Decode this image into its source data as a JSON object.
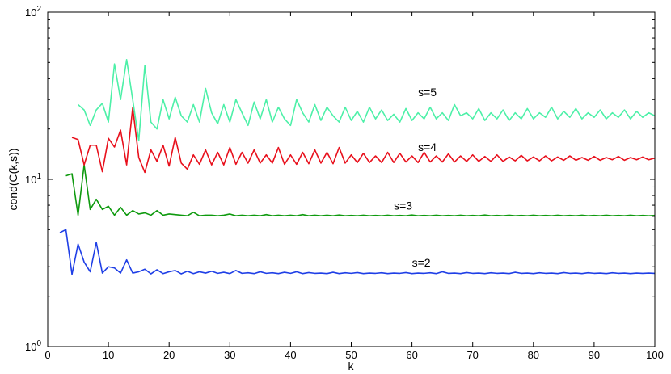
{
  "chart_data": {
    "type": "line",
    "title": "",
    "xlabel": "k",
    "ylabel": "cond(C(k,s))",
    "xlim": [
      0,
      100
    ],
    "ylim": [
      1,
      100
    ],
    "yscale": "log",
    "grid": false,
    "x_ticks": [
      0,
      10,
      20,
      30,
      40,
      50,
      60,
      70,
      80,
      90,
      100
    ],
    "y_ticks": [
      {
        "value": 1,
        "base": "10",
        "exp": "0"
      },
      {
        "value": 10,
        "base": "10",
        "exp": "1"
      },
      {
        "value": 100,
        "base": "10",
        "exp": "2"
      }
    ],
    "series": [
      {
        "name": "s=2",
        "color": "#1f3fe6",
        "label_at": [
          60,
          3.0
        ],
        "x": [
          2,
          3,
          4,
          5,
          6,
          7,
          8,
          9,
          10,
          11,
          12,
          13,
          14,
          15,
          16,
          17,
          18,
          19,
          20,
          21,
          22,
          23,
          24,
          25,
          26,
          27,
          28,
          29,
          30,
          31,
          32,
          33,
          34,
          35,
          36,
          37,
          38,
          39,
          40,
          41,
          42,
          43,
          44,
          45,
          46,
          47,
          48,
          49,
          50,
          51,
          52,
          53,
          54,
          55,
          56,
          57,
          58,
          59,
          60,
          61,
          62,
          63,
          64,
          65,
          66,
          67,
          68,
          69,
          70,
          71,
          72,
          73,
          74,
          75,
          76,
          77,
          78,
          79,
          80,
          81,
          82,
          83,
          84,
          85,
          86,
          87,
          88,
          89,
          90,
          91,
          92,
          93,
          94,
          95,
          96,
          97,
          98,
          99,
          100
        ],
        "values": [
          4.8,
          5.0,
          2.7,
          4.1,
          3.2,
          2.8,
          4.2,
          2.75,
          3.0,
          2.95,
          2.75,
          3.3,
          2.75,
          2.8,
          2.9,
          2.72,
          2.88,
          2.73,
          2.8,
          2.85,
          2.72,
          2.82,
          2.73,
          2.8,
          2.75,
          2.82,
          2.74,
          2.78,
          2.73,
          2.85,
          2.74,
          2.76,
          2.73,
          2.8,
          2.74,
          2.76,
          2.73,
          2.78,
          2.74,
          2.8,
          2.73,
          2.77,
          2.74,
          2.75,
          2.73,
          2.78,
          2.73,
          2.76,
          2.74,
          2.77,
          2.73,
          2.75,
          2.74,
          2.76,
          2.73,
          2.75,
          2.74,
          2.77,
          2.73,
          2.75,
          2.74,
          2.76,
          2.73,
          2.8,
          2.74,
          2.75,
          2.73,
          2.77,
          2.74,
          2.75,
          2.73,
          2.76,
          2.74,
          2.75,
          2.73,
          2.78,
          2.74,
          2.75,
          2.73,
          2.76,
          2.74,
          2.75,
          2.73,
          2.77,
          2.74,
          2.75,
          2.73,
          2.76,
          2.74,
          2.75,
          2.73,
          2.76,
          2.74,
          2.75,
          2.73,
          2.75,
          2.74,
          2.75,
          2.74
        ]
      },
      {
        "name": "s=3",
        "color": "#0f9a0f",
        "label_at": [
          57,
          6.6
        ],
        "x": [
          3,
          4,
          5,
          6,
          7,
          8,
          9,
          10,
          11,
          12,
          13,
          14,
          15,
          16,
          17,
          18,
          19,
          20,
          21,
          22,
          23,
          24,
          25,
          26,
          27,
          28,
          29,
          30,
          31,
          32,
          33,
          34,
          35,
          36,
          37,
          38,
          39,
          40,
          41,
          42,
          43,
          44,
          45,
          46,
          47,
          48,
          49,
          50,
          51,
          52,
          53,
          54,
          55,
          56,
          57,
          58,
          59,
          60,
          61,
          62,
          63,
          64,
          65,
          66,
          67,
          68,
          69,
          70,
          71,
          72,
          73,
          74,
          75,
          76,
          77,
          78,
          79,
          80,
          81,
          82,
          83,
          84,
          85,
          86,
          87,
          88,
          89,
          90,
          91,
          92,
          93,
          94,
          95,
          96,
          97,
          98,
          99,
          100
        ],
        "values": [
          10.5,
          10.8,
          6.1,
          12.2,
          6.6,
          7.6,
          6.6,
          6.9,
          6.1,
          6.8,
          6.1,
          6.5,
          6.2,
          6.3,
          6.1,
          6.5,
          6.1,
          6.2,
          6.15,
          6.1,
          6.05,
          6.35,
          6.05,
          6.1,
          6.1,
          6.05,
          6.1,
          6.2,
          6.05,
          6.1,
          6.05,
          6.1,
          6.05,
          6.15,
          6.05,
          6.1,
          6.05,
          6.1,
          6.05,
          6.15,
          6.05,
          6.1,
          6.05,
          6.1,
          6.05,
          6.12,
          6.05,
          6.08,
          6.05,
          6.1,
          6.05,
          6.08,
          6.05,
          6.1,
          6.05,
          6.08,
          6.05,
          6.12,
          6.05,
          6.08,
          6.05,
          6.1,
          6.05,
          6.08,
          6.05,
          6.1,
          6.05,
          6.08,
          6.05,
          6.12,
          6.05,
          6.08,
          6.05,
          6.1,
          6.05,
          6.08,
          6.05,
          6.1,
          6.05,
          6.08,
          6.05,
          6.1,
          6.05,
          6.08,
          6.05,
          6.1,
          6.05,
          6.08,
          6.05,
          6.1,
          6.05,
          6.08,
          6.05,
          6.1,
          6.05,
          6.08,
          6.05,
          6.08
        ]
      },
      {
        "name": "s=4",
        "color": "#e8101c",
        "label_at": [
          61,
          14.8
        ],
        "x": [
          4,
          5,
          6,
          7,
          8,
          9,
          10,
          11,
          12,
          13,
          14,
          15,
          16,
          17,
          18,
          19,
          20,
          21,
          22,
          23,
          24,
          25,
          26,
          27,
          28,
          29,
          30,
          31,
          32,
          33,
          34,
          35,
          36,
          37,
          38,
          39,
          40,
          41,
          42,
          43,
          44,
          45,
          46,
          47,
          48,
          49,
          50,
          51,
          52,
          53,
          54,
          55,
          56,
          57,
          58,
          59,
          60,
          61,
          62,
          63,
          64,
          65,
          66,
          67,
          68,
          69,
          70,
          71,
          72,
          73,
          74,
          75,
          76,
          77,
          78,
          79,
          80,
          81,
          82,
          83,
          84,
          85,
          86,
          87,
          88,
          89,
          90,
          91,
          92,
          93,
          94,
          95,
          96,
          97,
          98,
          99,
          100
        ],
        "values": [
          17.8,
          17.3,
          12.2,
          16.0,
          16.0,
          11.1,
          17.6,
          15.6,
          19.7,
          12.2,
          26.8,
          13.5,
          11.0,
          15.0,
          12.8,
          16.0,
          12.0,
          17.8,
          12.5,
          11.5,
          14.0,
          12.3,
          15.0,
          12.2,
          14.5,
          12.2,
          15.5,
          12.3,
          14.5,
          12.5,
          15.0,
          12.5,
          14.0,
          12.5,
          15.5,
          12.3,
          14.0,
          12.3,
          14.5,
          12.4,
          15.0,
          12.5,
          14.5,
          12.4,
          15.5,
          12.5,
          14.0,
          12.6,
          14.3,
          12.6,
          13.8,
          12.6,
          14.5,
          12.6,
          14.3,
          12.7,
          13.8,
          12.6,
          14.5,
          12.7,
          13.8,
          12.7,
          14.2,
          12.7,
          13.8,
          12.8,
          14.0,
          12.8,
          13.7,
          12.8,
          14.0,
          12.8,
          13.6,
          12.9,
          13.9,
          12.9,
          13.6,
          12.9,
          13.8,
          12.9,
          13.6,
          13.0,
          13.8,
          13.0,
          13.5,
          13.0,
          13.7,
          13.0,
          13.5,
          13.1,
          13.7,
          13.0,
          13.5,
          13.1,
          13.6,
          13.1,
          13.4
        ]
      },
      {
        "name": "s=5",
        "color": "#4df0a8",
        "label_at": [
          61,
          31.5
        ],
        "x": [
          5,
          6,
          7,
          8,
          9,
          10,
          11,
          12,
          13,
          14,
          15,
          16,
          17,
          18,
          19,
          20,
          21,
          22,
          23,
          24,
          25,
          26,
          27,
          28,
          29,
          30,
          31,
          32,
          33,
          34,
          35,
          36,
          37,
          38,
          39,
          40,
          41,
          42,
          43,
          44,
          45,
          46,
          47,
          48,
          49,
          50,
          51,
          52,
          53,
          54,
          55,
          56,
          57,
          58,
          59,
          60,
          61,
          62,
          63,
          64,
          65,
          66,
          67,
          68,
          69,
          70,
          71,
          72,
          73,
          74,
          75,
          76,
          77,
          78,
          79,
          80,
          81,
          82,
          83,
          84,
          85,
          86,
          87,
          88,
          89,
          90,
          91,
          92,
          93,
          94,
          95,
          96,
          97,
          98,
          99,
          100
        ],
        "values": [
          28.0,
          26.0,
          21.0,
          26.0,
          28.5,
          22.0,
          49.0,
          30.0,
          52.0,
          30.0,
          17.0,
          48.0,
          22.0,
          20.0,
          30.0,
          23.0,
          31.0,
          24.0,
          22.0,
          28.0,
          22.0,
          35.0,
          25.0,
          21.5,
          28.0,
          22.0,
          30.0,
          25.0,
          21.0,
          29.0,
          23.0,
          30.0,
          22.0,
          27.0,
          23.0,
          21.0,
          30.0,
          25.0,
          22.0,
          28.0,
          22.5,
          27.0,
          24.0,
          22.0,
          27.0,
          22.5,
          25.5,
          22.0,
          27.0,
          23.0,
          26.0,
          22.5,
          24.5,
          22.0,
          26.5,
          22.5,
          25.0,
          23.0,
          27.0,
          23.0,
          25.0,
          22.5,
          28.0,
          24.0,
          25.0,
          23.0,
          26.5,
          22.5,
          25.0,
          23.0,
          26.0,
          22.5,
          25.0,
          23.0,
          26.5,
          23.0,
          25.0,
          23.5,
          27.0,
          23.0,
          25.5,
          23.5,
          26.5,
          23.0,
          25.0,
          23.5,
          26.0,
          23.0,
          25.0,
          23.5,
          26.0,
          23.0,
          25.5,
          23.5,
          25.0,
          24.0
        ]
      }
    ]
  }
}
